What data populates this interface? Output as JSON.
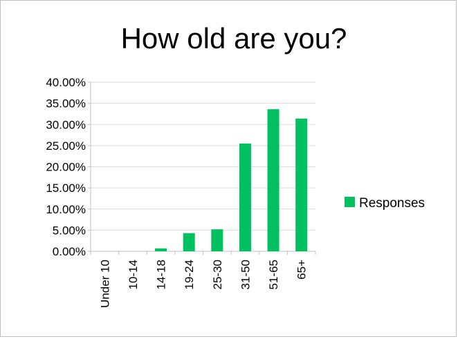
{
  "chart_data": {
    "type": "bar",
    "title": "How old are you?",
    "xlabel": "",
    "ylabel": "",
    "categories": [
      "Under 10",
      "10-14",
      "14-18",
      "19-24",
      "25-30",
      "31-50",
      "51-65",
      "65+"
    ],
    "series": [
      {
        "name": "Responses",
        "values": [
          0.0,
          0.0,
          0.7,
          4.3,
          5.2,
          25.5,
          33.6,
          31.4
        ],
        "color": "#00c060"
      }
    ],
    "ylim": [
      0,
      40
    ],
    "yticks": [
      0,
      5,
      10,
      15,
      20,
      25,
      30,
      35,
      40
    ],
    "ytick_labels": [
      "0.00%",
      "5.00%",
      "10.00%",
      "15.00%",
      "20.00%",
      "25.00%",
      "30.00%",
      "35.00%",
      "40.00%"
    ],
    "grid": true,
    "gridline_color": "#d9d9d9",
    "legend_position": "right"
  }
}
